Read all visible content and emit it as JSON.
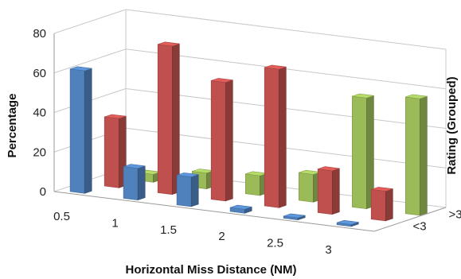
{
  "chart_data": {
    "type": "bar",
    "subtype": "3d-clustered-column",
    "title": "",
    "xlabel": "Horizontal Miss Distance (NM)",
    "ylabel": "Percentage",
    "zlabel": "Rating (Grouped)",
    "categories": [
      "0.5",
      "1",
      "1.5",
      "2",
      "2.5",
      "3"
    ],
    "depth_categories": [
      "<3",
      ">3"
    ],
    "ylim": [
      0,
      80
    ],
    "yticks": [
      "0",
      "20",
      "40",
      "60",
      "80"
    ],
    "grid": true,
    "series": [
      {
        "color": "#4f81bd",
        "values": [
          62,
          16,
          15,
          2,
          1,
          1
        ]
      },
      {
        "color": "#c0504d",
        "values": [
          35,
          75,
          60,
          70,
          22,
          15
        ]
      },
      {
        "color": "#9bbb59",
        "values": [
          4,
          8,
          10,
          14,
          56,
          59
        ]
      }
    ]
  }
}
